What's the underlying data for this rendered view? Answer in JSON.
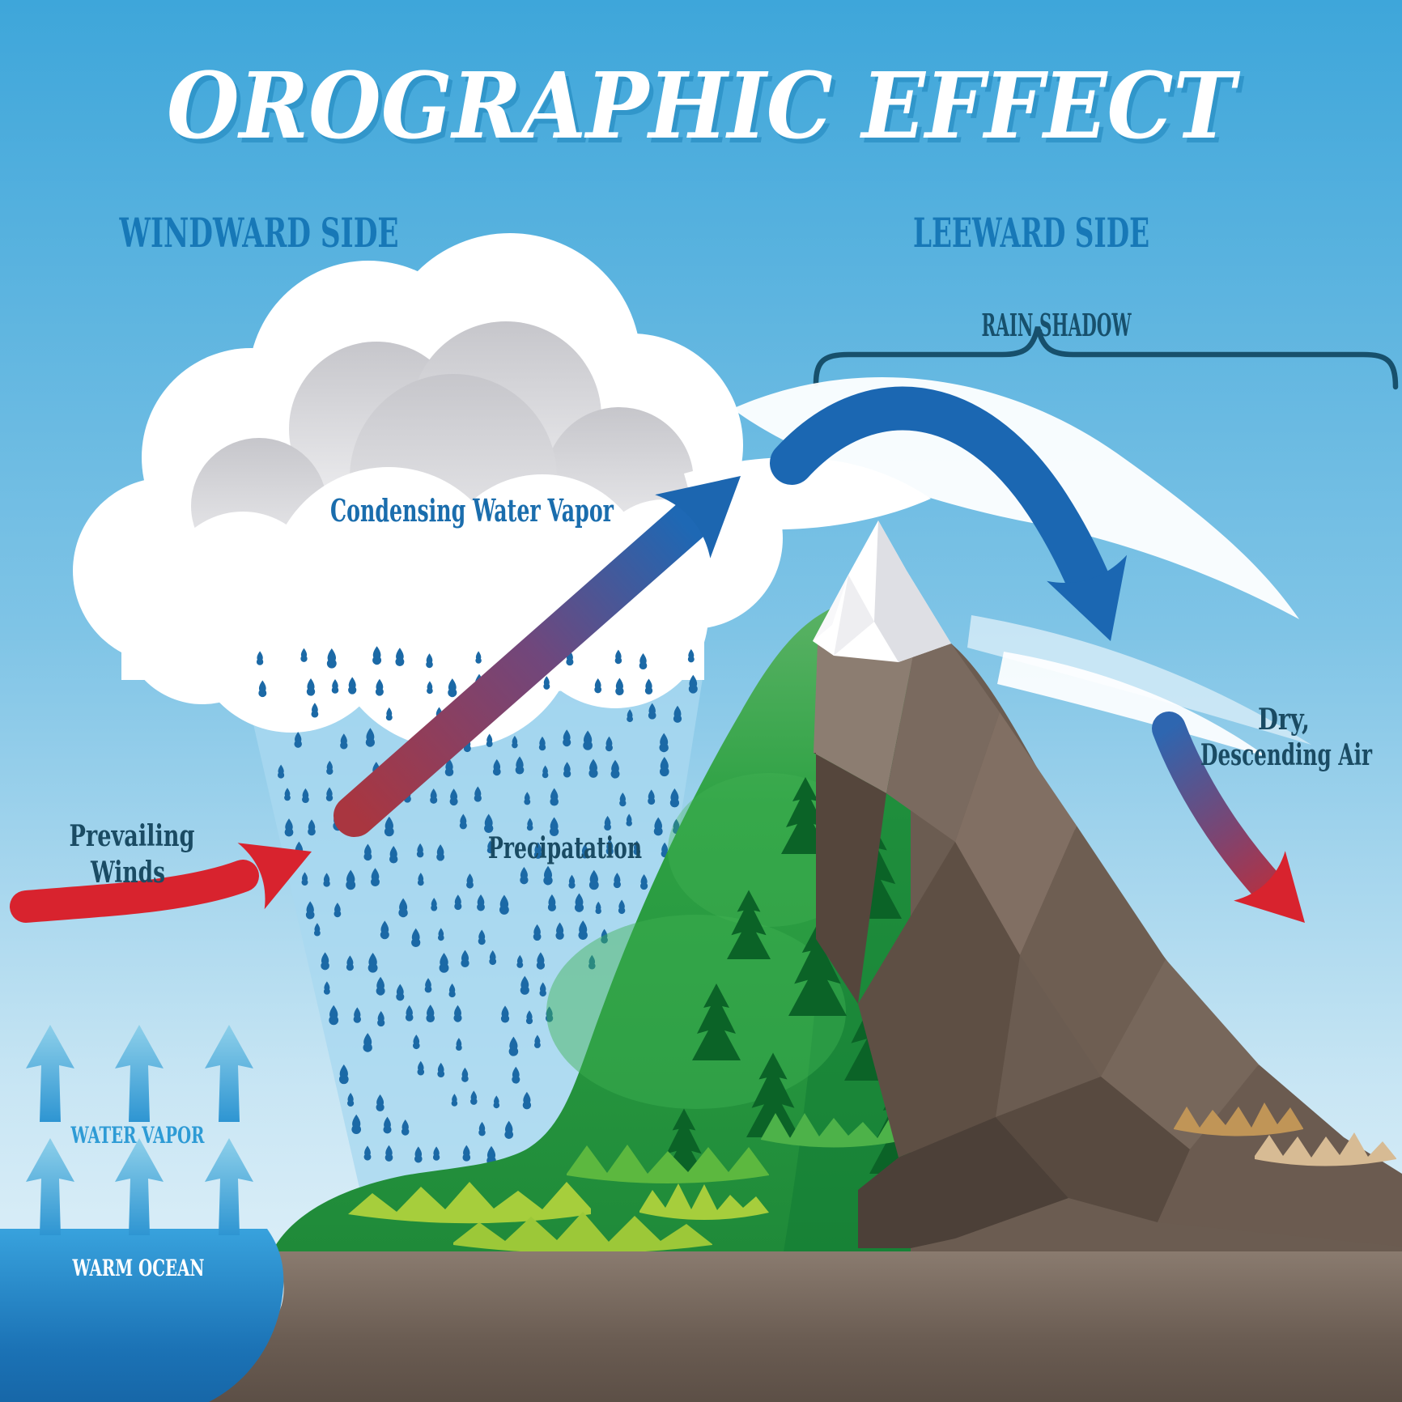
{
  "title": "OROGRAPHIC EFFECT",
  "sections": {
    "windward": "WINDWARD SIDE",
    "leeward": "LEEWARD SIDE"
  },
  "labels": {
    "rain_shadow": "RAIN SHADOW",
    "condensing": "Condensing Water Vapor",
    "precipitation": "Precipatation",
    "prevailing_line1": "Prevailing",
    "prevailing_line2": "Winds",
    "water_vapor": "WATER VAPOR",
    "warm_ocean": "WARM OCEAN",
    "dry_line1": "Dry,",
    "dry_line2": "Descending Air"
  },
  "icons": {
    "prevailing_wind_arrow": "red-right-up-arrow",
    "rising_air_arrow": "red-to-blue-diagonal-arrow",
    "over_mountain_arrow": "blue-arc-arrow",
    "descending_air_arrow": "blue-to-red-down-arrow",
    "water_vapor_arrows": "light-blue-up-arrows",
    "rain_shadow_bracket": "curly-brace"
  },
  "colors": {
    "sky_top": "#3EA6DA",
    "sky_bottom": "#EAF5FB",
    "section_label_blue": "#1778B7",
    "dark_teal_text": "#1A4B63",
    "condensing_blue": "#1A6DAD",
    "water_vapor_blue": "#2E9BD5",
    "warm_ocean_text": "#FFFFFF",
    "red_arrow": "#D8232E",
    "blue_arrow": "#1B67B2",
    "rain_drop": "#1B69A6",
    "rain_column": "#A9D8F0",
    "cloud_white": "#FFFFFF",
    "cloud_gray": "#CDCDD1",
    "green_slope": "#2EA244",
    "tree_green": "#0B6327",
    "grass_light": "#A6CE3C",
    "rock_brown": "#6B5C51",
    "land_front": "#8A7B6F",
    "ocean_blue": "#2F9DDA",
    "dry_grass_tan": "#C09557"
  }
}
